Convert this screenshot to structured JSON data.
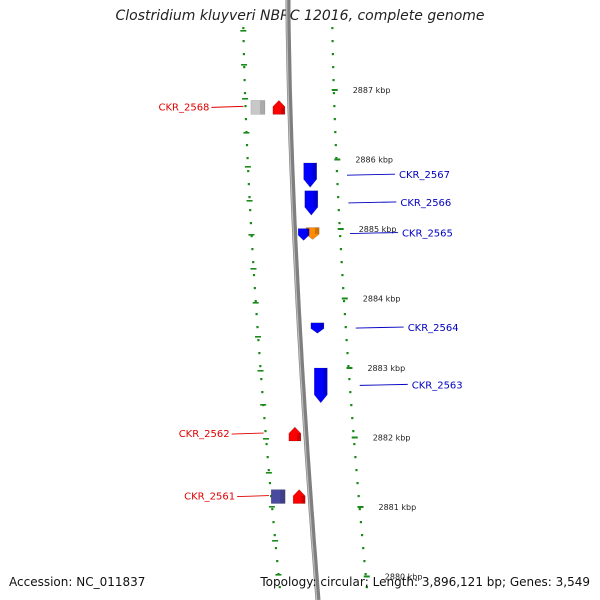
{
  "title": "Clostridium kluyveri NBRC 12016, complete genome",
  "footer": {
    "accession": "Accession: NC_011837",
    "summary": "Topology: circular; Length: 3,896,121 bp; Genes: 3,549"
  },
  "colors": {
    "backbone": "#7f7f7f",
    "dots": "#1a8a1a",
    "red_label": "#e00000",
    "blue_label": "#0000c0"
  },
  "ticks": [
    {
      "kbp": 2887,
      "label": "2887 kbp"
    },
    {
      "kbp": 2886,
      "label": "2886 kbp"
    },
    {
      "kbp": 2885,
      "label": "2885 kbp"
    },
    {
      "kbp": 2884,
      "label": "2884 kbp"
    },
    {
      "kbp": 2883,
      "label": "2883 kbp"
    },
    {
      "kbp": 2882,
      "label": "2882 kbp"
    },
    {
      "kbp": 2881,
      "label": "2881 kbp"
    },
    {
      "kbp": 2880,
      "label": "2880 kbp"
    }
  ],
  "genes": [
    {
      "name": "CKR_2568",
      "strand": "forward",
      "start_kbp": 2886.85,
      "end_kbp": 2886.65,
      "color": "#ff0000",
      "companion_color": "#c8c8c8"
    },
    {
      "name": "CKR_2567",
      "strand": "reverse",
      "start_kbp": 2885.95,
      "end_kbp": 2885.6,
      "color": "#0000ff"
    },
    {
      "name": "CKR_2566",
      "strand": "reverse",
      "start_kbp": 2885.55,
      "end_kbp": 2885.2,
      "color": "#0000ff"
    },
    {
      "name": "CKR_2565",
      "strand": "reverse",
      "start_kbp": 2885.02,
      "end_kbp": 2884.85,
      "color": "#ff8c00",
      "companion_color": "#0000ff"
    },
    {
      "name": "CKR_2564",
      "strand": "reverse",
      "start_kbp": 2883.65,
      "end_kbp": 2883.5,
      "color": "#0000ff"
    },
    {
      "name": "CKR_2563",
      "strand": "reverse",
      "start_kbp": 2883.0,
      "end_kbp": 2882.5,
      "color": "#0000ff"
    },
    {
      "name": "CKR_2562",
      "strand": "forward",
      "start_kbp": 2882.15,
      "end_kbp": 2881.95,
      "color": "#ff0000"
    },
    {
      "name": "CKR_2561",
      "strand": "forward",
      "start_kbp": 2881.25,
      "end_kbp": 2881.05,
      "color": "#ff0000",
      "companion_color": "#4a4aa0"
    }
  ]
}
